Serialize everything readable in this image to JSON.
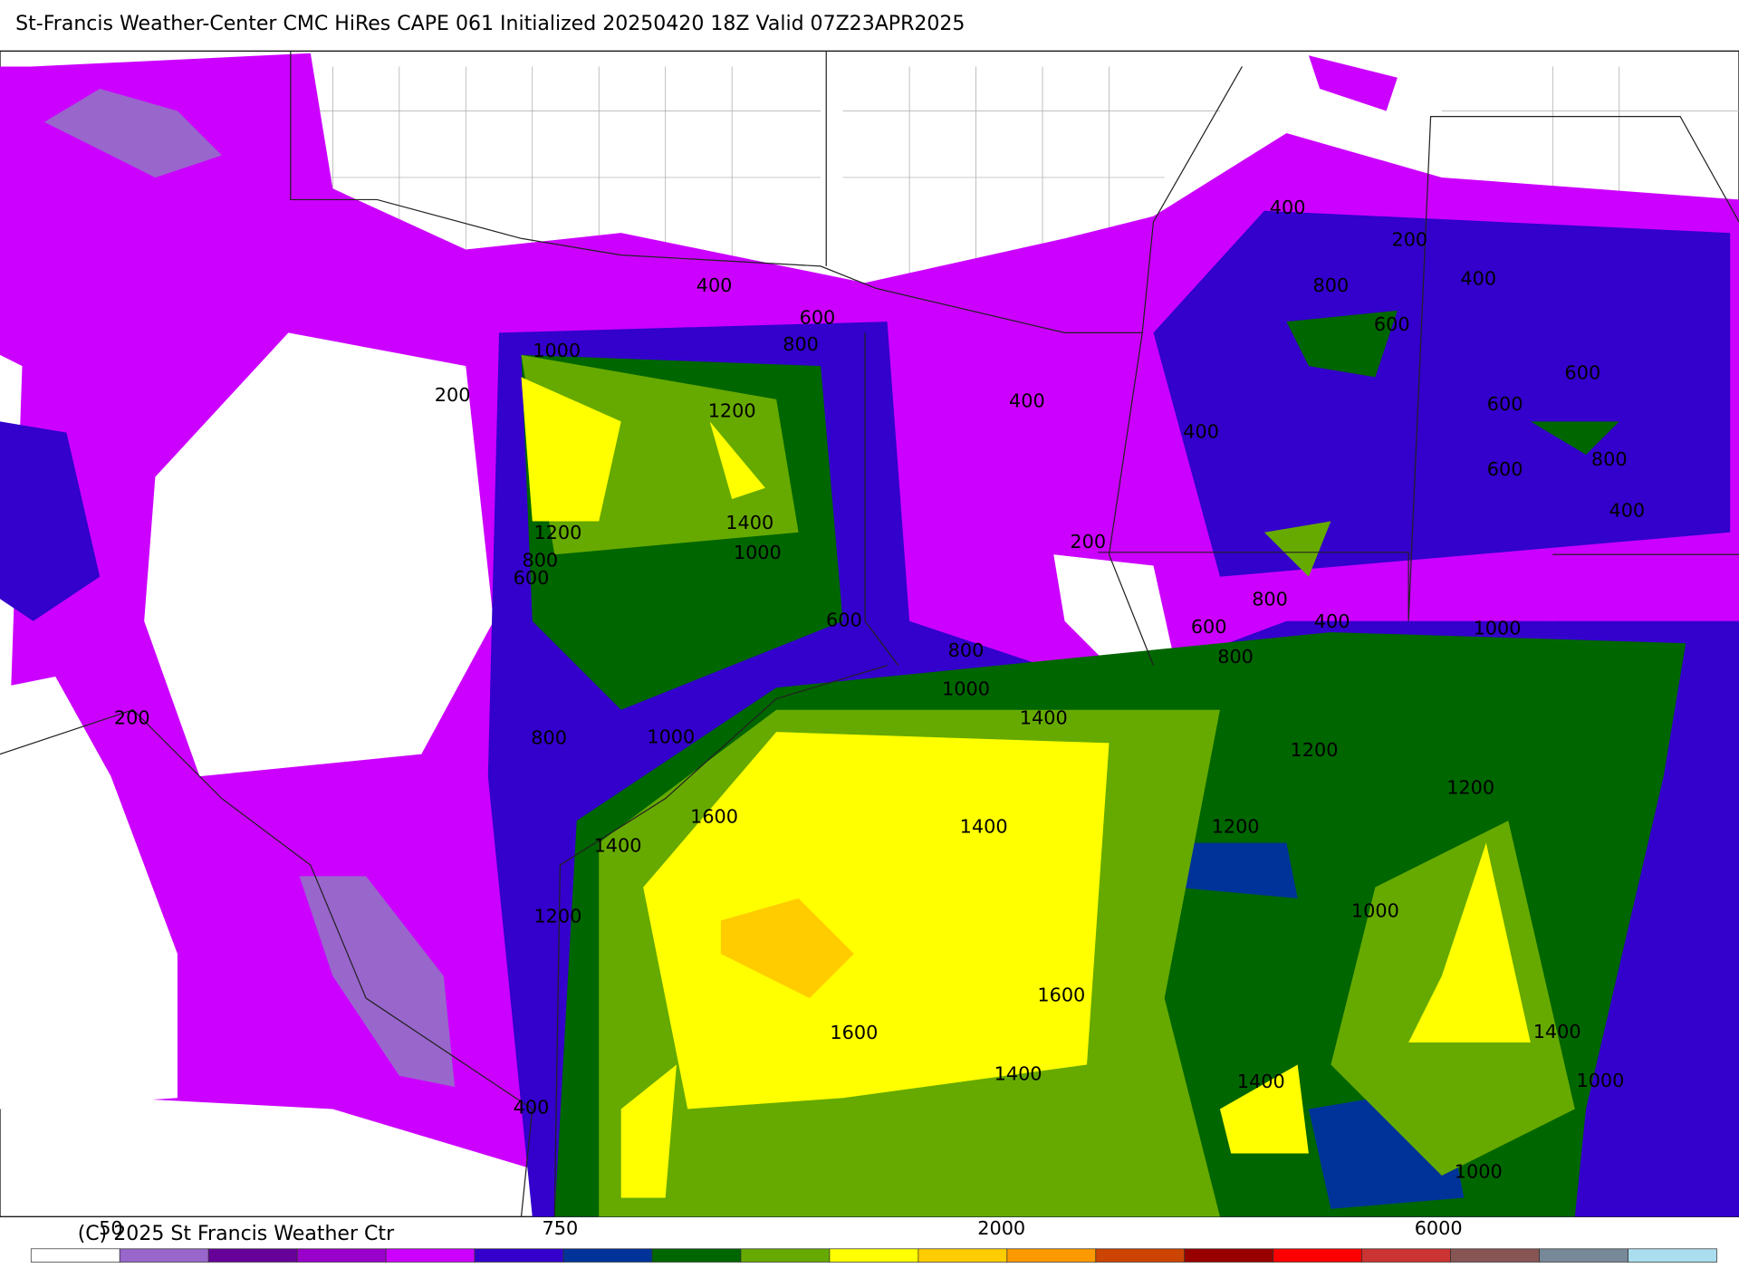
{
  "title": "St-Francis Weather-Center CMC HiRes CAPE  061 Initialized 20250420 18Z Valid 07Z23APR2025",
  "copyright": "(C) 2025 St Francis Weather Ctr",
  "colorbar": {
    "labels": [
      "50",
      "750",
      "2000",
      "6000"
    ]
  },
  "contour_labels": [
    "400",
    "600",
    "800",
    "1000",
    "1200",
    "200",
    "1400",
    "1200",
    "1000",
    "800",
    "600",
    "600",
    "800",
    "1000",
    "1400",
    "1000",
    "800",
    "200",
    "400",
    "400",
    "200",
    "400",
    "200",
    "800",
    "400",
    "600",
    "600",
    "600",
    "800",
    "600",
    "400",
    "800",
    "600",
    "800",
    "400",
    "1000",
    "1200",
    "1200",
    "1200",
    "1600",
    "1400",
    "1400",
    "1200",
    "1000",
    "1600",
    "1600",
    "1400",
    "1400",
    "1400",
    "1000",
    "400",
    "1000"
  ]
}
